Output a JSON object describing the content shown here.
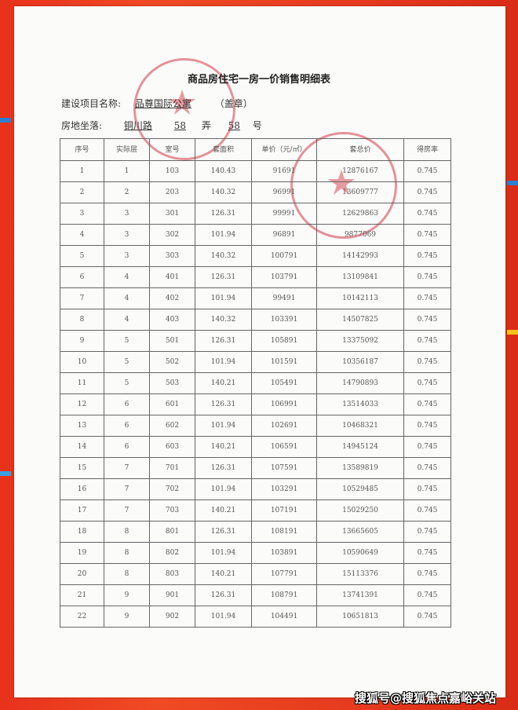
{
  "document": {
    "title": "商品房住宅一房一价销售明细表",
    "project_label": "建设项目名称:",
    "project_name": "品尊国际公寓",
    "seal_note": "（盖章）",
    "address_label": "房地坐落:",
    "road": "铜川路",
    "lane_no": "58",
    "lane_label": "弄",
    "number": "58",
    "number_label": "号"
  },
  "table": {
    "headers": [
      "序号",
      "实际层",
      "室号",
      "套面积",
      "单价（元/㎡）",
      "套总价",
      "得房率"
    ],
    "rows": [
      [
        "1",
        "1",
        "103",
        "140.43",
        "91691",
        "12876167",
        "0.745"
      ],
      [
        "2",
        "2",
        "203",
        "140.32",
        "96991",
        "13609777",
        "0.745"
      ],
      [
        "3",
        "3",
        "301",
        "126.31",
        "99991",
        "12629863",
        "0.745"
      ],
      [
        "4",
        "3",
        "302",
        "101.94",
        "96891",
        "9877069",
        "0.745"
      ],
      [
        "5",
        "3",
        "303",
        "140.32",
        "100791",
        "14142993",
        "0.745"
      ],
      [
        "6",
        "4",
        "401",
        "126.31",
        "103791",
        "13109841",
        "0.745"
      ],
      [
        "7",
        "4",
        "402",
        "101.94",
        "99491",
        "10142113",
        "0.745"
      ],
      [
        "8",
        "4",
        "403",
        "140.32",
        "103391",
        "14507825",
        "0.745"
      ],
      [
        "9",
        "5",
        "501",
        "126.31",
        "105891",
        "13375092",
        "0.745"
      ],
      [
        "10",
        "5",
        "502",
        "101.94",
        "101591",
        "10356187",
        "0.745"
      ],
      [
        "11",
        "5",
        "503",
        "140.21",
        "105491",
        "14790893",
        "0.745"
      ],
      [
        "12",
        "6",
        "601",
        "126.31",
        "106991",
        "13514033",
        "0.745"
      ],
      [
        "13",
        "6",
        "602",
        "101.94",
        "102691",
        "10468321",
        "0.745"
      ],
      [
        "14",
        "6",
        "603",
        "140.21",
        "106591",
        "14945124",
        "0.745"
      ],
      [
        "15",
        "7",
        "701",
        "126.31",
        "107591",
        "13589819",
        "0.745"
      ],
      [
        "16",
        "7",
        "702",
        "101.94",
        "103291",
        "10529485",
        "0.745"
      ],
      [
        "17",
        "7",
        "703",
        "140.21",
        "107191",
        "15029250",
        "0.745"
      ],
      [
        "18",
        "8",
        "801",
        "126.31",
        "108191",
        "13665605",
        "0.745"
      ],
      [
        "19",
        "8",
        "802",
        "101.94",
        "103891",
        "10590649",
        "0.745"
      ],
      [
        "20",
        "8",
        "803",
        "140.21",
        "107791",
        "15113376",
        "0.745"
      ],
      [
        "21",
        "9",
        "901",
        "126.31",
        "108791",
        "13741391",
        "0.745"
      ],
      [
        "22",
        "9",
        "902",
        "101.94",
        "104491",
        "10651813",
        "0.745"
      ]
    ]
  },
  "watermark": "搜狐号@搜狐焦点嘉峪关站",
  "colors": {
    "background": "#e8321c",
    "stamp": "#d23c46"
  }
}
